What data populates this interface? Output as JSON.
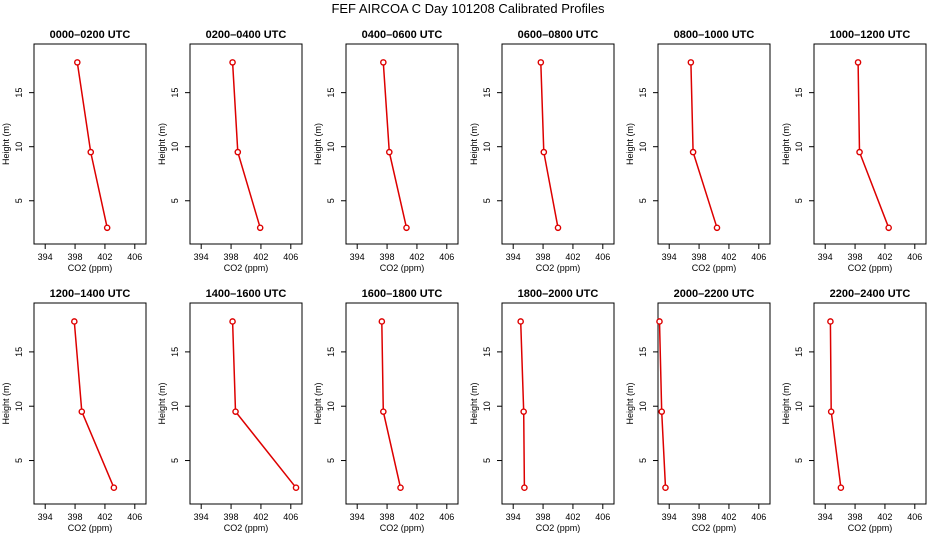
{
  "title": "FEF AIRCOA C  Day 101208  Calibrated Profiles",
  "axis_labels": {
    "x": "CO2 (ppm)",
    "y": "Height (m)"
  },
  "colors": {
    "series": "#dd0000",
    "axes": "#000000"
  },
  "chart_data": [
    {
      "type": "line",
      "title": "0000–0200 UTC",
      "xlabel": "CO2 (ppm)",
      "ylabel": "Height (m)",
      "xlim": [
        392.5,
        407.5
      ],
      "ylim": [
        1,
        19.5
      ],
      "xticks": [
        394,
        398,
        402,
        406
      ],
      "yticks": [
        5,
        10,
        15
      ],
      "x": [
        398.3,
        400.1,
        402.3
      ],
      "y": [
        17.8,
        9.5,
        2.5
      ]
    },
    {
      "type": "line",
      "title": "0200–0400 UTC",
      "xlabel": "CO2 (ppm)",
      "ylabel": "Height (m)",
      "xlim": [
        392.5,
        407.5
      ],
      "ylim": [
        1,
        19.5
      ],
      "xticks": [
        394,
        398,
        402,
        406
      ],
      "yticks": [
        5,
        10,
        15
      ],
      "x": [
        398.2,
        398.9,
        401.9
      ],
      "y": [
        17.8,
        9.5,
        2.5
      ]
    },
    {
      "type": "line",
      "title": "0400–0600 UTC",
      "xlabel": "CO2 (ppm)",
      "ylabel": "Height (m)",
      "xlim": [
        392.5,
        407.5
      ],
      "ylim": [
        1,
        19.5
      ],
      "xticks": [
        394,
        398,
        402,
        406
      ],
      "yticks": [
        5,
        10,
        15
      ],
      "x": [
        397.5,
        398.3,
        400.6
      ],
      "y": [
        17.8,
        9.5,
        2.5
      ]
    },
    {
      "type": "line",
      "title": "0600–0800 UTC",
      "xlabel": "CO2 (ppm)",
      "ylabel": "Height (m)",
      "xlim": [
        392.5,
        407.5
      ],
      "ylim": [
        1,
        19.5
      ],
      "xticks": [
        394,
        398,
        402,
        406
      ],
      "yticks": [
        5,
        10,
        15
      ],
      "x": [
        397.7,
        398.1,
        400.0
      ],
      "y": [
        17.8,
        9.5,
        2.5
      ]
    },
    {
      "type": "line",
      "title": "0800–1000 UTC",
      "xlabel": "CO2 (ppm)",
      "ylabel": "Height (m)",
      "xlim": [
        392.5,
        407.5
      ],
      "ylim": [
        1,
        19.5
      ],
      "xticks": [
        394,
        398,
        402,
        406
      ],
      "yticks": [
        5,
        10,
        15
      ],
      "x": [
        396.9,
        397.2,
        400.4
      ],
      "y": [
        17.8,
        9.5,
        2.5
      ]
    },
    {
      "type": "line",
      "title": "1000–1200 UTC",
      "xlabel": "CO2 (ppm)",
      "ylabel": "Height (m)",
      "xlim": [
        392.5,
        407.5
      ],
      "ylim": [
        1,
        19.5
      ],
      "xticks": [
        394,
        398,
        402,
        406
      ],
      "yticks": [
        5,
        10,
        15
      ],
      "x": [
        398.4,
        398.6,
        402.5
      ],
      "y": [
        17.8,
        9.5,
        2.5
      ]
    },
    {
      "type": "line",
      "title": "1200–1400 UTC",
      "xlabel": "CO2 (ppm)",
      "ylabel": "Height (m)",
      "xlim": [
        392.5,
        407.5
      ],
      "ylim": [
        1,
        19.5
      ],
      "xticks": [
        394,
        398,
        402,
        406
      ],
      "yticks": [
        5,
        10,
        15
      ],
      "x": [
        397.9,
        398.9,
        403.2
      ],
      "y": [
        17.8,
        9.5,
        2.5
      ]
    },
    {
      "type": "line",
      "title": "1400–1600 UTC",
      "xlabel": "CO2 (ppm)",
      "ylabel": "Height (m)",
      "xlim": [
        392.5,
        407.5
      ],
      "ylim": [
        1,
        19.5
      ],
      "xticks": [
        394,
        398,
        402,
        406
      ],
      "yticks": [
        5,
        10,
        15
      ],
      "x": [
        398.2,
        398.6,
        406.7
      ],
      "y": [
        17.8,
        9.5,
        2.5
      ]
    },
    {
      "type": "line",
      "title": "1600–1800 UTC",
      "xlabel": "CO2 (ppm)",
      "ylabel": "Height (m)",
      "xlim": [
        392.5,
        407.5
      ],
      "ylim": [
        1,
        19.5
      ],
      "xticks": [
        394,
        398,
        402,
        406
      ],
      "yticks": [
        5,
        10,
        15
      ],
      "x": [
        397.3,
        397.5,
        399.8
      ],
      "y": [
        17.8,
        9.5,
        2.5
      ]
    },
    {
      "type": "line",
      "title": "1800–2000 UTC",
      "xlabel": "CO2 (ppm)",
      "ylabel": "Height (m)",
      "xlim": [
        392.5,
        407.5
      ],
      "ylim": [
        1,
        19.5
      ],
      "xticks": [
        394,
        398,
        402,
        406
      ],
      "yticks": [
        5,
        10,
        15
      ],
      "x": [
        395.0,
        395.4,
        395.5
      ],
      "y": [
        17.8,
        9.5,
        2.5
      ]
    },
    {
      "type": "line",
      "title": "2000–2200 UTC",
      "xlabel": "CO2 (ppm)",
      "ylabel": "Height (m)",
      "xlim": [
        392.5,
        407.5
      ],
      "ylim": [
        1,
        19.5
      ],
      "xticks": [
        394,
        398,
        402,
        406
      ],
      "yticks": [
        5,
        10,
        15
      ],
      "x": [
        392.7,
        393.0,
        393.5
      ],
      "y": [
        17.8,
        9.5,
        2.5
      ]
    },
    {
      "type": "line",
      "title": "2200–2400 UTC",
      "xlabel": "CO2 (ppm)",
      "ylabel": "Height (m)",
      "xlim": [
        392.5,
        407.5
      ],
      "ylim": [
        1,
        19.5
      ],
      "xticks": [
        394,
        398,
        402,
        406
      ],
      "yticks": [
        5,
        10,
        15
      ],
      "x": [
        394.7,
        394.8,
        396.1
      ],
      "y": [
        17.8,
        9.5,
        2.5
      ]
    }
  ]
}
